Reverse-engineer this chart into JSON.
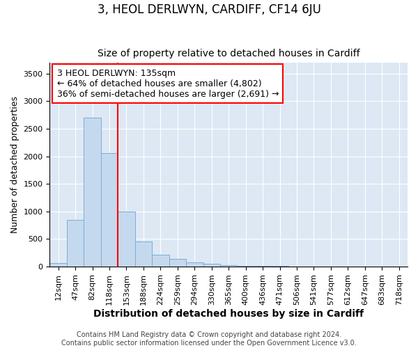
{
  "title": "3, HEOL DERLWYN, CARDIFF, CF14 6JU",
  "subtitle": "Size of property relative to detached houses in Cardiff",
  "xlabel": "Distribution of detached houses by size in Cardiff",
  "ylabel": "Number of detached properties",
  "categories": [
    "12sqm",
    "47sqm",
    "82sqm",
    "118sqm",
    "153sqm",
    "188sqm",
    "224sqm",
    "259sqm",
    "294sqm",
    "330sqm",
    "365sqm",
    "400sqm",
    "436sqm",
    "471sqm",
    "506sqm",
    "541sqm",
    "577sqm",
    "612sqm",
    "647sqm",
    "683sqm",
    "718sqm"
  ],
  "values": [
    60,
    850,
    2700,
    2060,
    1000,
    450,
    210,
    145,
    75,
    55,
    30,
    20,
    12,
    8,
    5,
    4,
    3,
    2,
    2,
    1,
    1
  ],
  "bar_color": "#c5d9ee",
  "bar_edgecolor": "#7aadd4",
  "bar_linewidth": 0.7,
  "grid_color": "#ffffff",
  "bg_color": "#dde8f4",
  "red_line_x": 3.5,
  "annotation_text": "3 HEOL DERLWYN: 135sqm\n← 64% of detached houses are smaller (4,802)\n36% of semi-detached houses are larger (2,691) →",
  "annotation_fontsize": 9,
  "ylim": [
    0,
    3700
  ],
  "yticks": [
    0,
    500,
    1000,
    1500,
    2000,
    2500,
    3000,
    3500
  ],
  "footer_text": "Contains HM Land Registry data © Crown copyright and database right 2024.\nContains public sector information licensed under the Open Government Licence v3.0.",
  "title_fontsize": 12,
  "subtitle_fontsize": 10,
  "xlabel_fontsize": 10,
  "ylabel_fontsize": 9,
  "tick_fontsize": 8,
  "footer_fontsize": 7
}
